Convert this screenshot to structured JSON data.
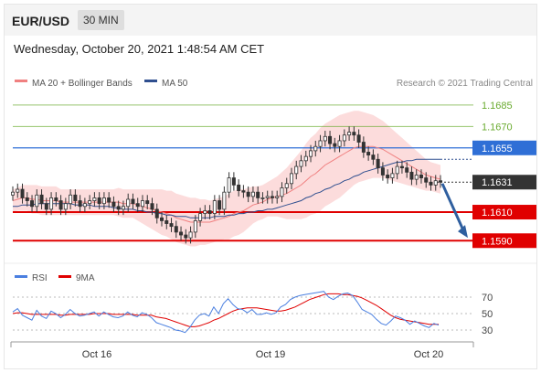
{
  "header": {
    "pair": "EUR/USD",
    "timeframe": "30 MIN"
  },
  "datetime": "Wednesday, October 20, 2021 1:48:54 AM CET",
  "colors": {
    "green": "#6aab2f",
    "blue": "#2f6fd6",
    "red": "#e00000",
    "price_box": "#333333",
    "arrow": "#2f5f9f",
    "ma20": "#f08080",
    "ma50": "#2f4f8f",
    "band": "#fbd0d0"
  },
  "chart_data": [
    {
      "type": "line",
      "legend": [
        {
          "name": "MA 20 + Bollinger Bands",
          "color": "#f08080"
        },
        {
          "name": "MA 50",
          "color": "#2f4f8f"
        }
      ],
      "credit": "Research © 2021 Trading Central",
      "ylim": [
        1.1578,
        1.1692
      ],
      "x_ticks": [
        "Oct 16",
        "Oct 19",
        "Oct 20"
      ],
      "levels": [
        {
          "label": "1.1685",
          "value": 1.1685,
          "kind": "resistance",
          "color": "#6aab2f"
        },
        {
          "label": "1.1670",
          "value": 1.167,
          "kind": "resistance",
          "color": "#6aab2f"
        },
        {
          "label": "1.1655",
          "value": 1.1655,
          "kind": "pivot",
          "color": "#2f6fd6"
        },
        {
          "label": "1.1631",
          "value": 1.1631,
          "kind": "last",
          "color": "#333333"
        },
        {
          "label": "1.1610",
          "value": 1.161,
          "kind": "support",
          "color": "#e00000"
        },
        {
          "label": "1.1590",
          "value": 1.159,
          "kind": "support",
          "color": "#e00000"
        }
      ],
      "close": [
        1.1624,
        1.1626,
        1.162,
        1.1618,
        1.1614,
        1.1622,
        1.1616,
        1.1612,
        1.162,
        1.1618,
        1.1612,
        1.1616,
        1.1622,
        1.1618,
        1.1614,
        1.1616,
        1.1618,
        1.162,
        1.1616,
        1.162,
        1.1617,
        1.1614,
        1.1612,
        1.1614,
        1.1619,
        1.1616,
        1.1614,
        1.1618,
        1.1616,
        1.1612,
        1.1606,
        1.1604,
        1.1602,
        1.16,
        1.1596,
        1.1594,
        1.1592,
        1.1596,
        1.1604,
        1.1609,
        1.1611,
        1.1609,
        1.1618,
        1.1612,
        1.1624,
        1.1634,
        1.1629,
        1.1625,
        1.1624,
        1.1621,
        1.1624,
        1.162,
        1.162,
        1.1621,
        1.162,
        1.1621,
        1.1627,
        1.163,
        1.1637,
        1.1642,
        1.1646,
        1.1649,
        1.1653,
        1.1656,
        1.166,
        1.1663,
        1.1658,
        1.1656,
        1.166,
        1.1664,
        1.1666,
        1.1664,
        1.1659,
        1.1652,
        1.165,
        1.1647,
        1.1641,
        1.1636,
        1.1634,
        1.1637,
        1.1642,
        1.1641,
        1.1638,
        1.1633,
        1.1636,
        1.1634,
        1.1631,
        1.1629,
        1.1632,
        1.1631
      ],
      "ma20": [
        1.1618,
        1.1619,
        1.162,
        1.162,
        1.1619,
        1.1619,
        1.1618,
        1.1618,
        1.1618,
        1.1618,
        1.1617,
        1.1617,
        1.1617,
        1.1617,
        1.1617,
        1.1617,
        1.1617,
        1.1617,
        1.1617,
        1.1617,
        1.1617,
        1.1617,
        1.1617,
        1.1616,
        1.1616,
        1.1616,
        1.1615,
        1.1614,
        1.1613,
        1.1612,
        1.1611,
        1.161,
        1.1609,
        1.1608,
        1.1606,
        1.1605,
        1.1604,
        1.1603,
        1.1603,
        1.1603,
        1.1603,
        1.1603,
        1.1604,
        1.1605,
        1.1606,
        1.1607,
        1.1609,
        1.161,
        1.1611,
        1.1613,
        1.1615,
        1.1616,
        1.1617,
        1.1619,
        1.162,
        1.1621,
        1.1622,
        1.1623,
        1.1625,
        1.1627,
        1.1629,
        1.1632,
        1.1635,
        1.1637,
        1.164,
        1.1643,
        1.1645,
        1.1647,
        1.1649,
        1.1651,
        1.1653,
        1.1655,
        1.1656,
        1.1656,
        1.1656,
        1.1656,
        1.1655,
        1.1654,
        1.1652,
        1.165,
        1.1648,
        1.1646,
        1.1644,
        1.1642,
        1.164,
        1.1638,
        1.1636,
        1.1635,
        1.1634,
        1.1633
      ],
      "ma50": [
        1.1614,
        1.1614,
        1.1615,
        1.1615,
        1.1615,
        1.1616,
        1.1616,
        1.1616,
        1.1616,
        1.1616,
        1.1616,
        1.1616,
        1.1616,
        1.1615,
        1.1615,
        1.1615,
        1.1615,
        1.1614,
        1.1614,
        1.1614,
        1.1614,
        1.1613,
        1.1613,
        1.1612,
        1.1612,
        1.1612,
        1.1611,
        1.1611,
        1.161,
        1.161,
        1.1609,
        1.1609,
        1.1608,
        1.1608,
        1.1607,
        1.1607,
        1.1607,
        1.1606,
        1.1606,
        1.1606,
        1.1606,
        1.1606,
        1.1607,
        1.1607,
        1.1607,
        1.1608,
        1.1608,
        1.1609,
        1.1609,
        1.161,
        1.161,
        1.1611,
        1.1611,
        1.1612,
        1.1612,
        1.1613,
        1.1614,
        1.1615,
        1.1616,
        1.1617,
        1.1618,
        1.162,
        1.1621,
        1.1623,
        1.1624,
        1.1626,
        1.1627,
        1.1629,
        1.163,
        1.1632,
        1.1633,
        1.1635,
        1.1636,
        1.1638,
        1.1639,
        1.164,
        1.1641,
        1.1642,
        1.1643,
        1.1644,
        1.1645,
        1.1645,
        1.1646,
        1.1646,
        1.1647,
        1.1647,
        1.1647,
        1.1647,
        1.1647,
        1.1647
      ],
      "band_halfwidth": [
        0.0008,
        0.0008,
        0.0009,
        0.0009,
        0.001,
        0.001,
        0.001,
        0.001,
        0.001,
        0.001,
        0.0009,
        0.0009,
        0.0009,
        0.0009,
        0.0009,
        0.0009,
        0.0009,
        0.0009,
        0.0009,
        0.0009,
        0.0009,
        0.0009,
        0.001,
        0.001,
        0.001,
        0.001,
        0.0011,
        0.0012,
        0.0013,
        0.0014,
        0.0015,
        0.0016,
        0.0016,
        0.0017,
        0.0017,
        0.0017,
        0.0017,
        0.0017,
        0.0017,
        0.0016,
        0.0016,
        0.0015,
        0.0015,
        0.0015,
        0.0015,
        0.0016,
        0.0016,
        0.0016,
        0.0015,
        0.0014,
        0.0013,
        0.0012,
        0.0012,
        0.0012,
        0.0013,
        0.0014,
        0.0016,
        0.0018,
        0.002,
        0.0022,
        0.0024,
        0.0026,
        0.0027,
        0.0028,
        0.0029,
        0.0029,
        0.0029,
        0.0029,
        0.0029,
        0.0028,
        0.0027,
        0.0026,
        0.0025,
        0.0024,
        0.0023,
        0.0022,
        0.0021,
        0.002,
        0.0019,
        0.0018,
        0.0017,
        0.0016,
        0.0015,
        0.0014,
        0.0013,
        0.0012,
        0.0011,
        0.001,
        0.001,
        0.001
      ]
    },
    {
      "type": "line",
      "legend": [
        {
          "name": "RSI",
          "color": "#4a7fe0"
        },
        {
          "name": "9MA",
          "color": "#e00000"
        }
      ],
      "y_ticks": [
        70,
        50,
        30
      ],
      "ylim": [
        20,
        80
      ],
      "rsi": [
        52,
        56,
        48,
        45,
        42,
        54,
        47,
        44,
        53,
        50,
        45,
        49,
        55,
        50,
        47,
        48,
        50,
        52,
        47,
        52,
        49,
        46,
        45,
        47,
        52,
        48,
        46,
        51,
        49,
        45,
        39,
        37,
        35,
        33,
        30,
        29,
        27,
        33,
        42,
        48,
        50,
        47,
        58,
        50,
        62,
        68,
        61,
        56,
        55,
        51,
        55,
        49,
        49,
        51,
        49,
        51,
        58,
        61,
        67,
        70,
        72,
        73,
        74,
        75,
        76,
        77,
        70,
        67,
        71,
        74,
        75,
        72,
        64,
        55,
        52,
        49,
        43,
        38,
        36,
        41,
        47,
        45,
        42,
        37,
        41,
        38,
        35,
        33,
        38,
        36
      ],
      "ma9": [
        50,
        51,
        51,
        50,
        49,
        49,
        49,
        49,
        49,
        49,
        48,
        48,
        49,
        49,
        49,
        49,
        49,
        50,
        50,
        50,
        50,
        49,
        49,
        49,
        49,
        49,
        48,
        48,
        48,
        48,
        46,
        45,
        44,
        42,
        40,
        38,
        36,
        34,
        34,
        35,
        37,
        39,
        42,
        44,
        47,
        50,
        53,
        55,
        56,
        57,
        57,
        57,
        56,
        55,
        54,
        53,
        53,
        54,
        56,
        58,
        61,
        64,
        67,
        69,
        71,
        73,
        74,
        74,
        74,
        73,
        73,
        72,
        71,
        69,
        66,
        63,
        60,
        56,
        52,
        48,
        45,
        43,
        42,
        41,
        40,
        39,
        38,
        37,
        37,
        37
      ]
    }
  ]
}
